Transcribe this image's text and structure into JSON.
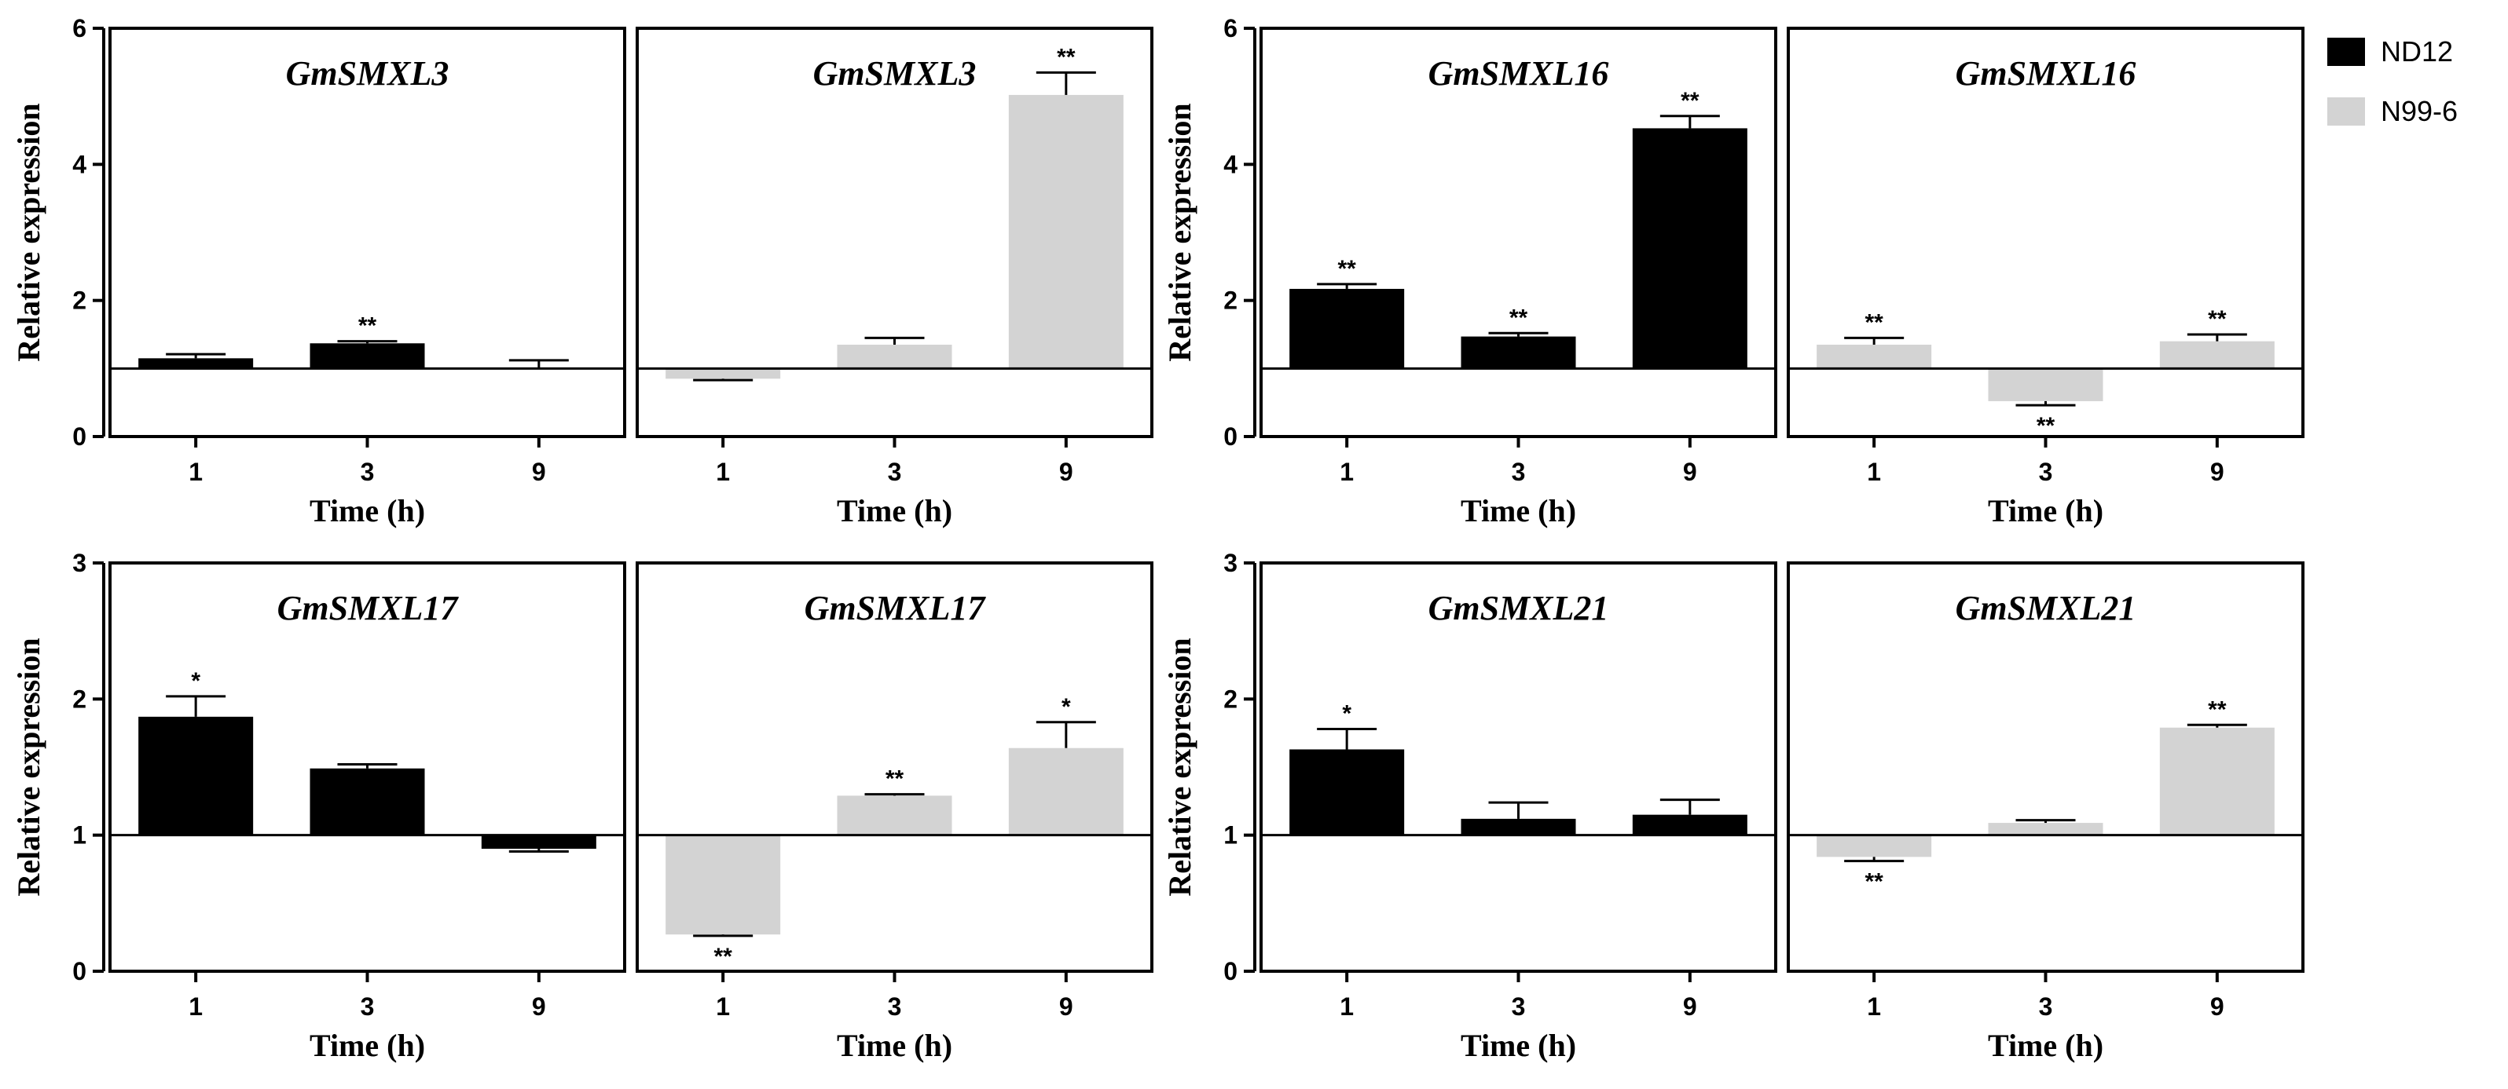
{
  "legend": [
    {
      "name": "ND12",
      "color": "#000000"
    },
    {
      "name": "N99-6",
      "color": "#d3d3d3"
    }
  ],
  "chart_data": [
    {
      "type": "bar",
      "gene": "GmSMXL3",
      "ylabel": "Relative expression",
      "ylim": [
        0,
        6
      ],
      "yticks": [
        "0",
        "2",
        "4",
        "6"
      ],
      "baseline": 1,
      "panels": [
        {
          "title": "GmSMXL3",
          "series": "ND12",
          "color": "#000000",
          "xlabel": "Time (h)",
          "categories": [
            "1",
            "3",
            "9"
          ],
          "values": [
            1.15,
            1.37,
            1.0
          ],
          "errors": [
            0.06,
            0.03,
            0.12
          ],
          "significance": [
            "",
            "**",
            ""
          ]
        },
        {
          "title": "GmSMXL3",
          "series": "N99-6",
          "color": "#d3d3d3",
          "xlabel": "Time (h)",
          "categories": [
            "1",
            "3",
            "9"
          ],
          "values": [
            0.85,
            1.35,
            5.02
          ],
          "errors": [
            0.02,
            0.1,
            0.33
          ],
          "significance": [
            "",
            "",
            "**"
          ]
        }
      ]
    },
    {
      "type": "bar",
      "gene": "GmSMXL16",
      "ylabel": "Relative expression",
      "ylim": [
        0,
        6
      ],
      "yticks": [
        "0",
        "2",
        "4",
        "6"
      ],
      "baseline": 1,
      "panels": [
        {
          "title": "GmSMXL16",
          "series": "ND12",
          "color": "#000000",
          "xlabel": "Time (h)",
          "categories": [
            "1",
            "3",
            "9"
          ],
          "values": [
            2.17,
            1.47,
            4.53
          ],
          "errors": [
            0.07,
            0.05,
            0.18
          ],
          "significance": [
            "**",
            "**",
            "**"
          ]
        },
        {
          "title": "GmSMXL16",
          "series": "N99-6",
          "color": "#d3d3d3",
          "xlabel": "Time (h)",
          "categories": [
            "1",
            "3",
            "9"
          ],
          "values": [
            1.35,
            0.52,
            1.4
          ],
          "errors": [
            0.1,
            0.06,
            0.1
          ],
          "significance": [
            "**",
            "**",
            "**"
          ]
        }
      ]
    },
    {
      "type": "bar",
      "gene": "GmSMXL17",
      "ylabel": "Relative expression",
      "ylim": [
        0,
        3
      ],
      "yticks": [
        "0",
        "1",
        "2",
        "3"
      ],
      "baseline": 1,
      "panels": [
        {
          "title": "GmSMXL17",
          "series": "ND12",
          "color": "#000000",
          "xlabel": "Time (h)",
          "categories": [
            "1",
            "3",
            "9"
          ],
          "values": [
            1.87,
            1.49,
            0.9
          ],
          "errors": [
            0.15,
            0.03,
            0.02
          ],
          "significance": [
            "*",
            "",
            ""
          ]
        },
        {
          "title": "GmSMXL17",
          "series": "N99-6",
          "color": "#d3d3d3",
          "xlabel": "Time (h)",
          "categories": [
            "1",
            "3",
            "9"
          ],
          "values": [
            0.27,
            1.29,
            1.64
          ],
          "errors": [
            0.01,
            0.01,
            0.19
          ],
          "significance": [
            "**",
            "**",
            "*"
          ]
        }
      ]
    },
    {
      "type": "bar",
      "gene": "GmSMXL21",
      "ylabel": "Relative expression",
      "ylim": [
        0,
        3
      ],
      "yticks": [
        "0",
        "1",
        "2",
        "3"
      ],
      "baseline": 1,
      "panels": [
        {
          "title": "GmSMXL21",
          "series": "ND12",
          "color": "#000000",
          "xlabel": "Time (h)",
          "categories": [
            "1",
            "3",
            "9"
          ],
          "values": [
            1.63,
            1.12,
            1.15
          ],
          "errors": [
            0.15,
            0.12,
            0.11
          ],
          "significance": [
            "*",
            "",
            ""
          ]
        },
        {
          "title": "GmSMXL21",
          "series": "N99-6",
          "color": "#d3d3d3",
          "xlabel": "Time (h)",
          "categories": [
            "1",
            "3",
            "9"
          ],
          "values": [
            0.84,
            1.09,
            1.79
          ],
          "errors": [
            0.03,
            0.02,
            0.02
          ],
          "significance": [
            "**",
            "",
            "**"
          ]
        }
      ]
    }
  ]
}
